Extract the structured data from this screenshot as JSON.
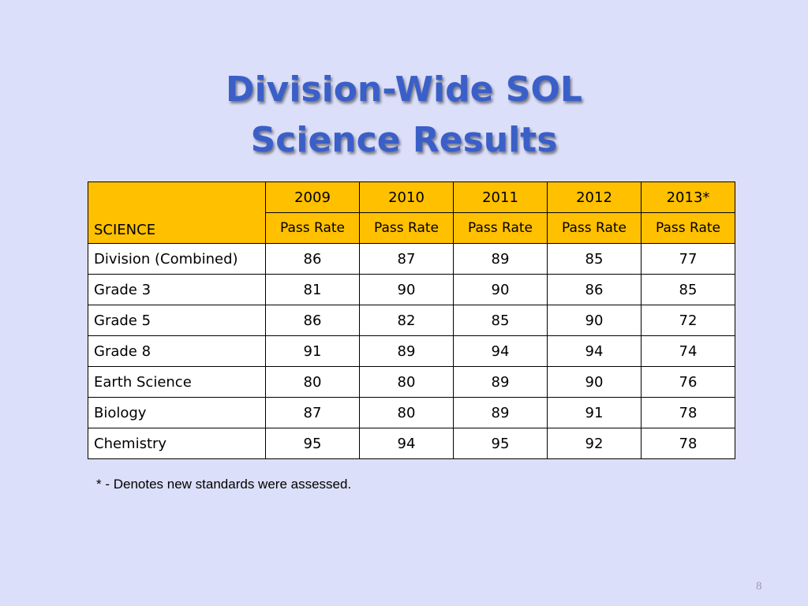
{
  "slide": {
    "title_line1": "Division-Wide SOL",
    "title_line2": "Science Results",
    "footnote": "* - Denotes new standards were assessed.",
    "page_number": "8"
  },
  "table": {
    "corner_label": "SCIENCE",
    "years": [
      "2009",
      "2010",
      "2011",
      "2012",
      "2013*"
    ],
    "subheaders": [
      "Pass Rate",
      "Pass Rate",
      "Pass Rate",
      "Pass Rate",
      "Pass Rate"
    ],
    "rows": [
      {
        "label": "Division (Combined)",
        "values": [
          "86",
          "87",
          "89",
          "85",
          "77"
        ]
      },
      {
        "label": "Grade 3",
        "values": [
          "81",
          "90",
          "90",
          "86",
          "85"
        ]
      },
      {
        "label": "Grade 5",
        "values": [
          "86",
          "82",
          "85",
          "90",
          "72"
        ]
      },
      {
        "label": "Grade 8",
        "values": [
          "91",
          "89",
          "94",
          "94",
          "74"
        ]
      },
      {
        "label": "Earth Science",
        "values": [
          "80",
          "80",
          "89",
          "90",
          "76"
        ]
      },
      {
        "label": "Biology",
        "values": [
          "87",
          "80",
          "89",
          "91",
          "78"
        ]
      },
      {
        "label": "Chemistry",
        "values": [
          "95",
          "94",
          "95",
          "92",
          "78"
        ]
      }
    ]
  },
  "colors": {
    "background": "#dcdff9",
    "title": "#3a5fc8",
    "header_fill": "#ffc000"
  }
}
